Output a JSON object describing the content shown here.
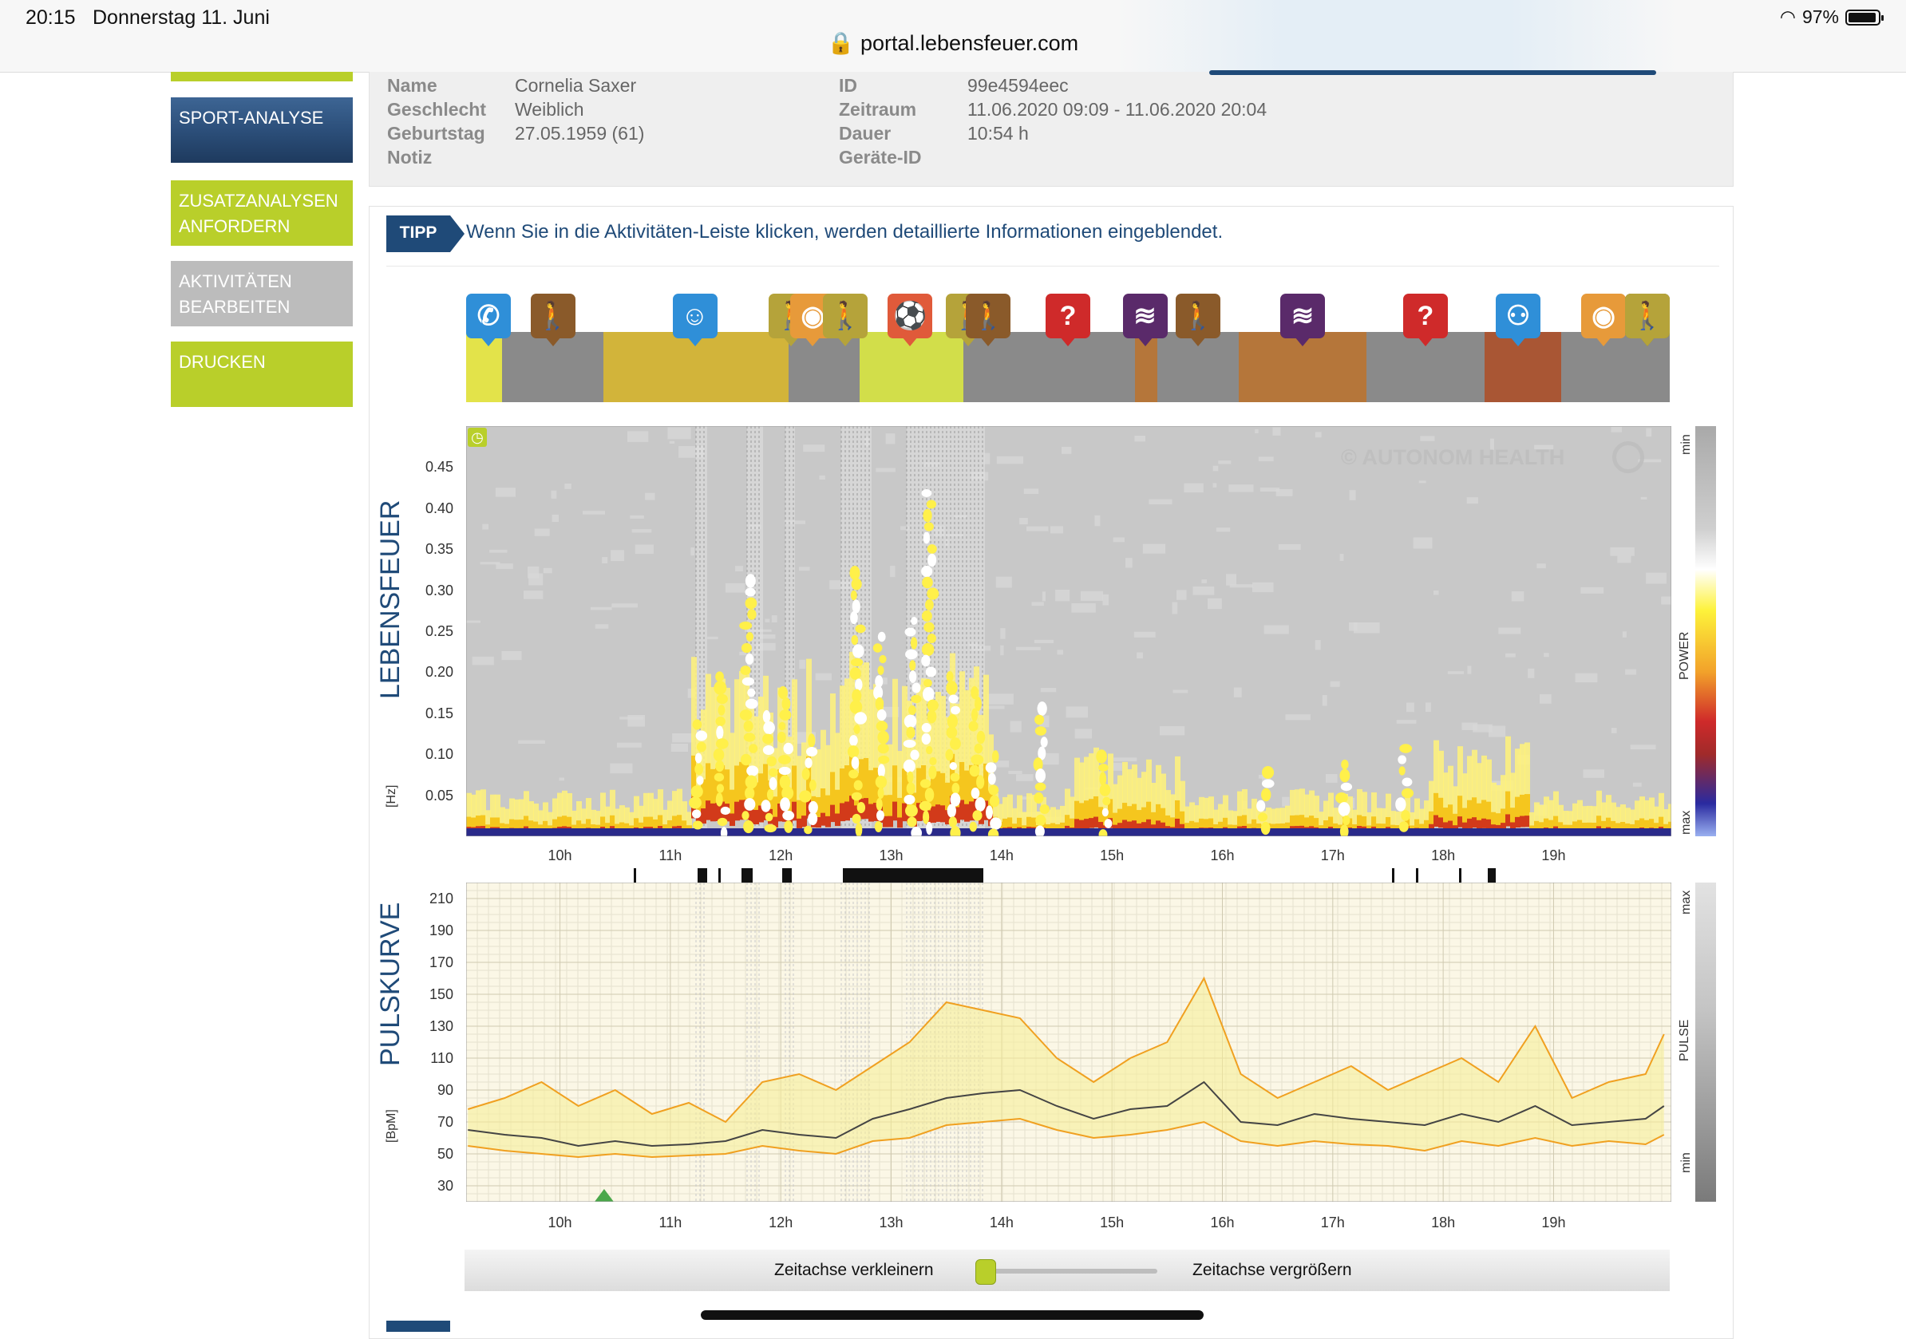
{
  "status": {
    "time": "20:15",
    "date": "Donnerstag 11. Juni",
    "url": "portal.lebensfeuer.com",
    "battery": "97%"
  },
  "sidebar": [
    {
      "label": "SPORT-ANALYSE",
      "color": "#2c4f7a"
    },
    {
      "label": "ZUSATZANALYSEN ANFORDERN",
      "color": "#b9cf2a"
    },
    {
      "label": "AKTIVITÄTEN BEARBEITEN",
      "color": "#bcbcbc"
    },
    {
      "label": "DRUCKEN",
      "color": "#b9cf2a"
    }
  ],
  "info": {
    "left": [
      {
        "label": "Name",
        "value": "Cornelia Saxer"
      },
      {
        "label": "Geschlecht",
        "value": "Weiblich"
      },
      {
        "label": "Geburtstag",
        "value": "27.05.1959 (61)"
      },
      {
        "label": "Notiz",
        "value": ""
      }
    ],
    "right": [
      {
        "label": "ID",
        "value": "99e4594eec"
      },
      {
        "label": "Zeitraum",
        "value": "11.06.2020 09:09 - 11.06.2020 20:04"
      },
      {
        "label": "Dauer",
        "value": "10:54 h"
      },
      {
        "label": "Geräte-ID",
        "value": ""
      }
    ]
  },
  "tip": {
    "badge": "TIPP",
    "text": "Wenn Sie in die Aktivitäten-Leiste klicken, werden detaillierte Informationen eingeblendet."
  },
  "activities": {
    "segments": [
      {
        "color": "#e3e34a",
        "start": 0.0,
        "end": 0.03
      },
      {
        "color": "#8a8a8a",
        "start": 0.03,
        "end": 0.114
      },
      {
        "color": "#d2b43a",
        "start": 0.114,
        "end": 0.268
      },
      {
        "color": "#8a8a8a",
        "start": 0.268,
        "end": 0.327
      },
      {
        "color": "#d2de4a",
        "start": 0.327,
        "end": 0.413
      },
      {
        "color": "#8a8a8a",
        "start": 0.413,
        "end": 0.556
      },
      {
        "color": "#b5763a",
        "start": 0.556,
        "end": 0.574
      },
      {
        "color": "#8a8a8a",
        "start": 0.574,
        "end": 0.642
      },
      {
        "color": "#b5763a",
        "start": 0.642,
        "end": 0.748
      },
      {
        "color": "#8a8a8a",
        "start": 0.748,
        "end": 0.846
      },
      {
        "color": "#a95634",
        "start": 0.846,
        "end": 0.91
      },
      {
        "color": "#8a8a8a",
        "start": 0.91,
        "end": 1.0
      }
    ],
    "pins": [
      {
        "icon": "phone-icon",
        "glyph": "✆",
        "color": "#2f8fd8",
        "pos": 0.015
      },
      {
        "icon": "walking-icon",
        "glyph": "🚶",
        "color": "#8a5a2a",
        "pos": 0.072
      },
      {
        "icon": "head-icon",
        "glyph": "☺",
        "color": "#2f8fd8",
        "pos": 0.19
      },
      {
        "icon": "walking-icon",
        "glyph": "🚶",
        "color": "#b5a33a",
        "pos": 0.27
      },
      {
        "icon": "food-icon",
        "glyph": "◉",
        "color": "#e79a3a",
        "pos": 0.288
      },
      {
        "icon": "walking-icon",
        "glyph": "🚶",
        "color": "#b5a33a",
        "pos": 0.315
      },
      {
        "icon": "sport-icon",
        "glyph": "⚽",
        "color": "#e05a3a",
        "pos": 0.369
      },
      {
        "icon": "walking-icon",
        "glyph": "🚶",
        "color": "#b5a33a",
        "pos": 0.417
      },
      {
        "icon": "walking-icon",
        "glyph": "🚶",
        "color": "#8a5a2a",
        "pos": 0.434
      },
      {
        "icon": "question-icon",
        "glyph": "?",
        "color": "#cf2a2a",
        "pos": 0.5
      },
      {
        "icon": "rest-icon",
        "glyph": "≋",
        "color": "#5a2a6a",
        "pos": 0.564
      },
      {
        "icon": "walking-icon",
        "glyph": "🚶",
        "color": "#8a5a2a",
        "pos": 0.608
      },
      {
        "icon": "rest-icon",
        "glyph": "≋",
        "color": "#5a2a6a",
        "pos": 0.695
      },
      {
        "icon": "question-icon",
        "glyph": "?",
        "color": "#cf2a2a",
        "pos": 0.797
      },
      {
        "icon": "meeting-icon",
        "glyph": "⚇",
        "color": "#2f8fd8",
        "pos": 0.874
      },
      {
        "icon": "food-icon",
        "glyph": "◉",
        "color": "#e79a3a",
        "pos": 0.945
      },
      {
        "icon": "walking-icon",
        "glyph": "🚶",
        "color": "#6a6a4a",
        "pos": 0.984
      },
      {
        "icon": "walking-icon",
        "glyph": "🚶",
        "color": "#b5a33a",
        "pos": 0.998
      }
    ]
  },
  "spectrogram": {
    "title": "LEBENSFEUER",
    "unit": "[Hz]",
    "watermark": "© AUTONOM HEALTH",
    "yticks": [
      "0.45",
      "0.40",
      "0.35",
      "0.30",
      "0.25",
      "0.20",
      "0.15",
      "0.10",
      "0.05"
    ],
    "colorbar": {
      "top": "min",
      "mid": "POWER",
      "bottom": "max"
    }
  },
  "xaxis": {
    "ticks": [
      "10h",
      "11h",
      "12h",
      "13h",
      "14h",
      "15h",
      "16h",
      "17h",
      "18h",
      "19h"
    ]
  },
  "pulse": {
    "title": "PULSKURVE",
    "unit": "[BpM]",
    "yticks": [
      "210",
      "190",
      "170",
      "150",
      "130",
      "110",
      "90",
      "70",
      "50",
      "30"
    ],
    "colorbar": {
      "top": "max",
      "mid": "PULSE",
      "bottom": "min"
    }
  },
  "chart_data": {
    "type": "line",
    "title": "PULSKURVE",
    "xlabel": "",
    "ylabel": "[BpM]",
    "x": [
      "09:10",
      "09:30",
      "09:50",
      "10:10",
      "10:30",
      "10:50",
      "11:10",
      "11:30",
      "11:50",
      "12:10",
      "12:30",
      "12:50",
      "13:10",
      "13:30",
      "13:50",
      "14:10",
      "14:30",
      "14:50",
      "15:10",
      "15:30",
      "15:50",
      "16:10",
      "16:30",
      "16:50",
      "17:10",
      "17:30",
      "17:50",
      "18:10",
      "18:30",
      "18:50",
      "19:10",
      "19:30",
      "19:50",
      "20:00"
    ],
    "ylim": [
      20,
      220
    ],
    "series": [
      {
        "values": [
          78,
          85,
          95,
          80,
          90,
          75,
          82,
          70,
          95,
          100,
          90,
          105,
          120,
          145,
          140,
          135,
          110,
          95,
          110,
          120,
          160,
          100,
          85,
          95,
          105,
          90,
          100,
          110,
          95,
          130,
          85,
          95,
          100,
          125
        ]
      },
      {
        "values": [
          65,
          62,
          60,
          55,
          58,
          55,
          56,
          58,
          65,
          62,
          60,
          72,
          78,
          85,
          88,
          90,
          80,
          72,
          78,
          80,
          95,
          70,
          68,
          75,
          72,
          70,
          68,
          75,
          70,
          80,
          68,
          70,
          72,
          80
        ]
      },
      {
        "values": [
          55,
          52,
          50,
          48,
          50,
          48,
          49,
          50,
          55,
          52,
          50,
          58,
          60,
          68,
          70,
          72,
          65,
          60,
          62,
          65,
          70,
          58,
          55,
          58,
          56,
          55,
          52,
          58,
          55,
          60,
          55,
          58,
          56,
          62
        ]
      }
    ]
  },
  "zoom": {
    "shrink": "Zeitachse verkleinern",
    "enlarge": "Zeitachse vergrößern"
  }
}
